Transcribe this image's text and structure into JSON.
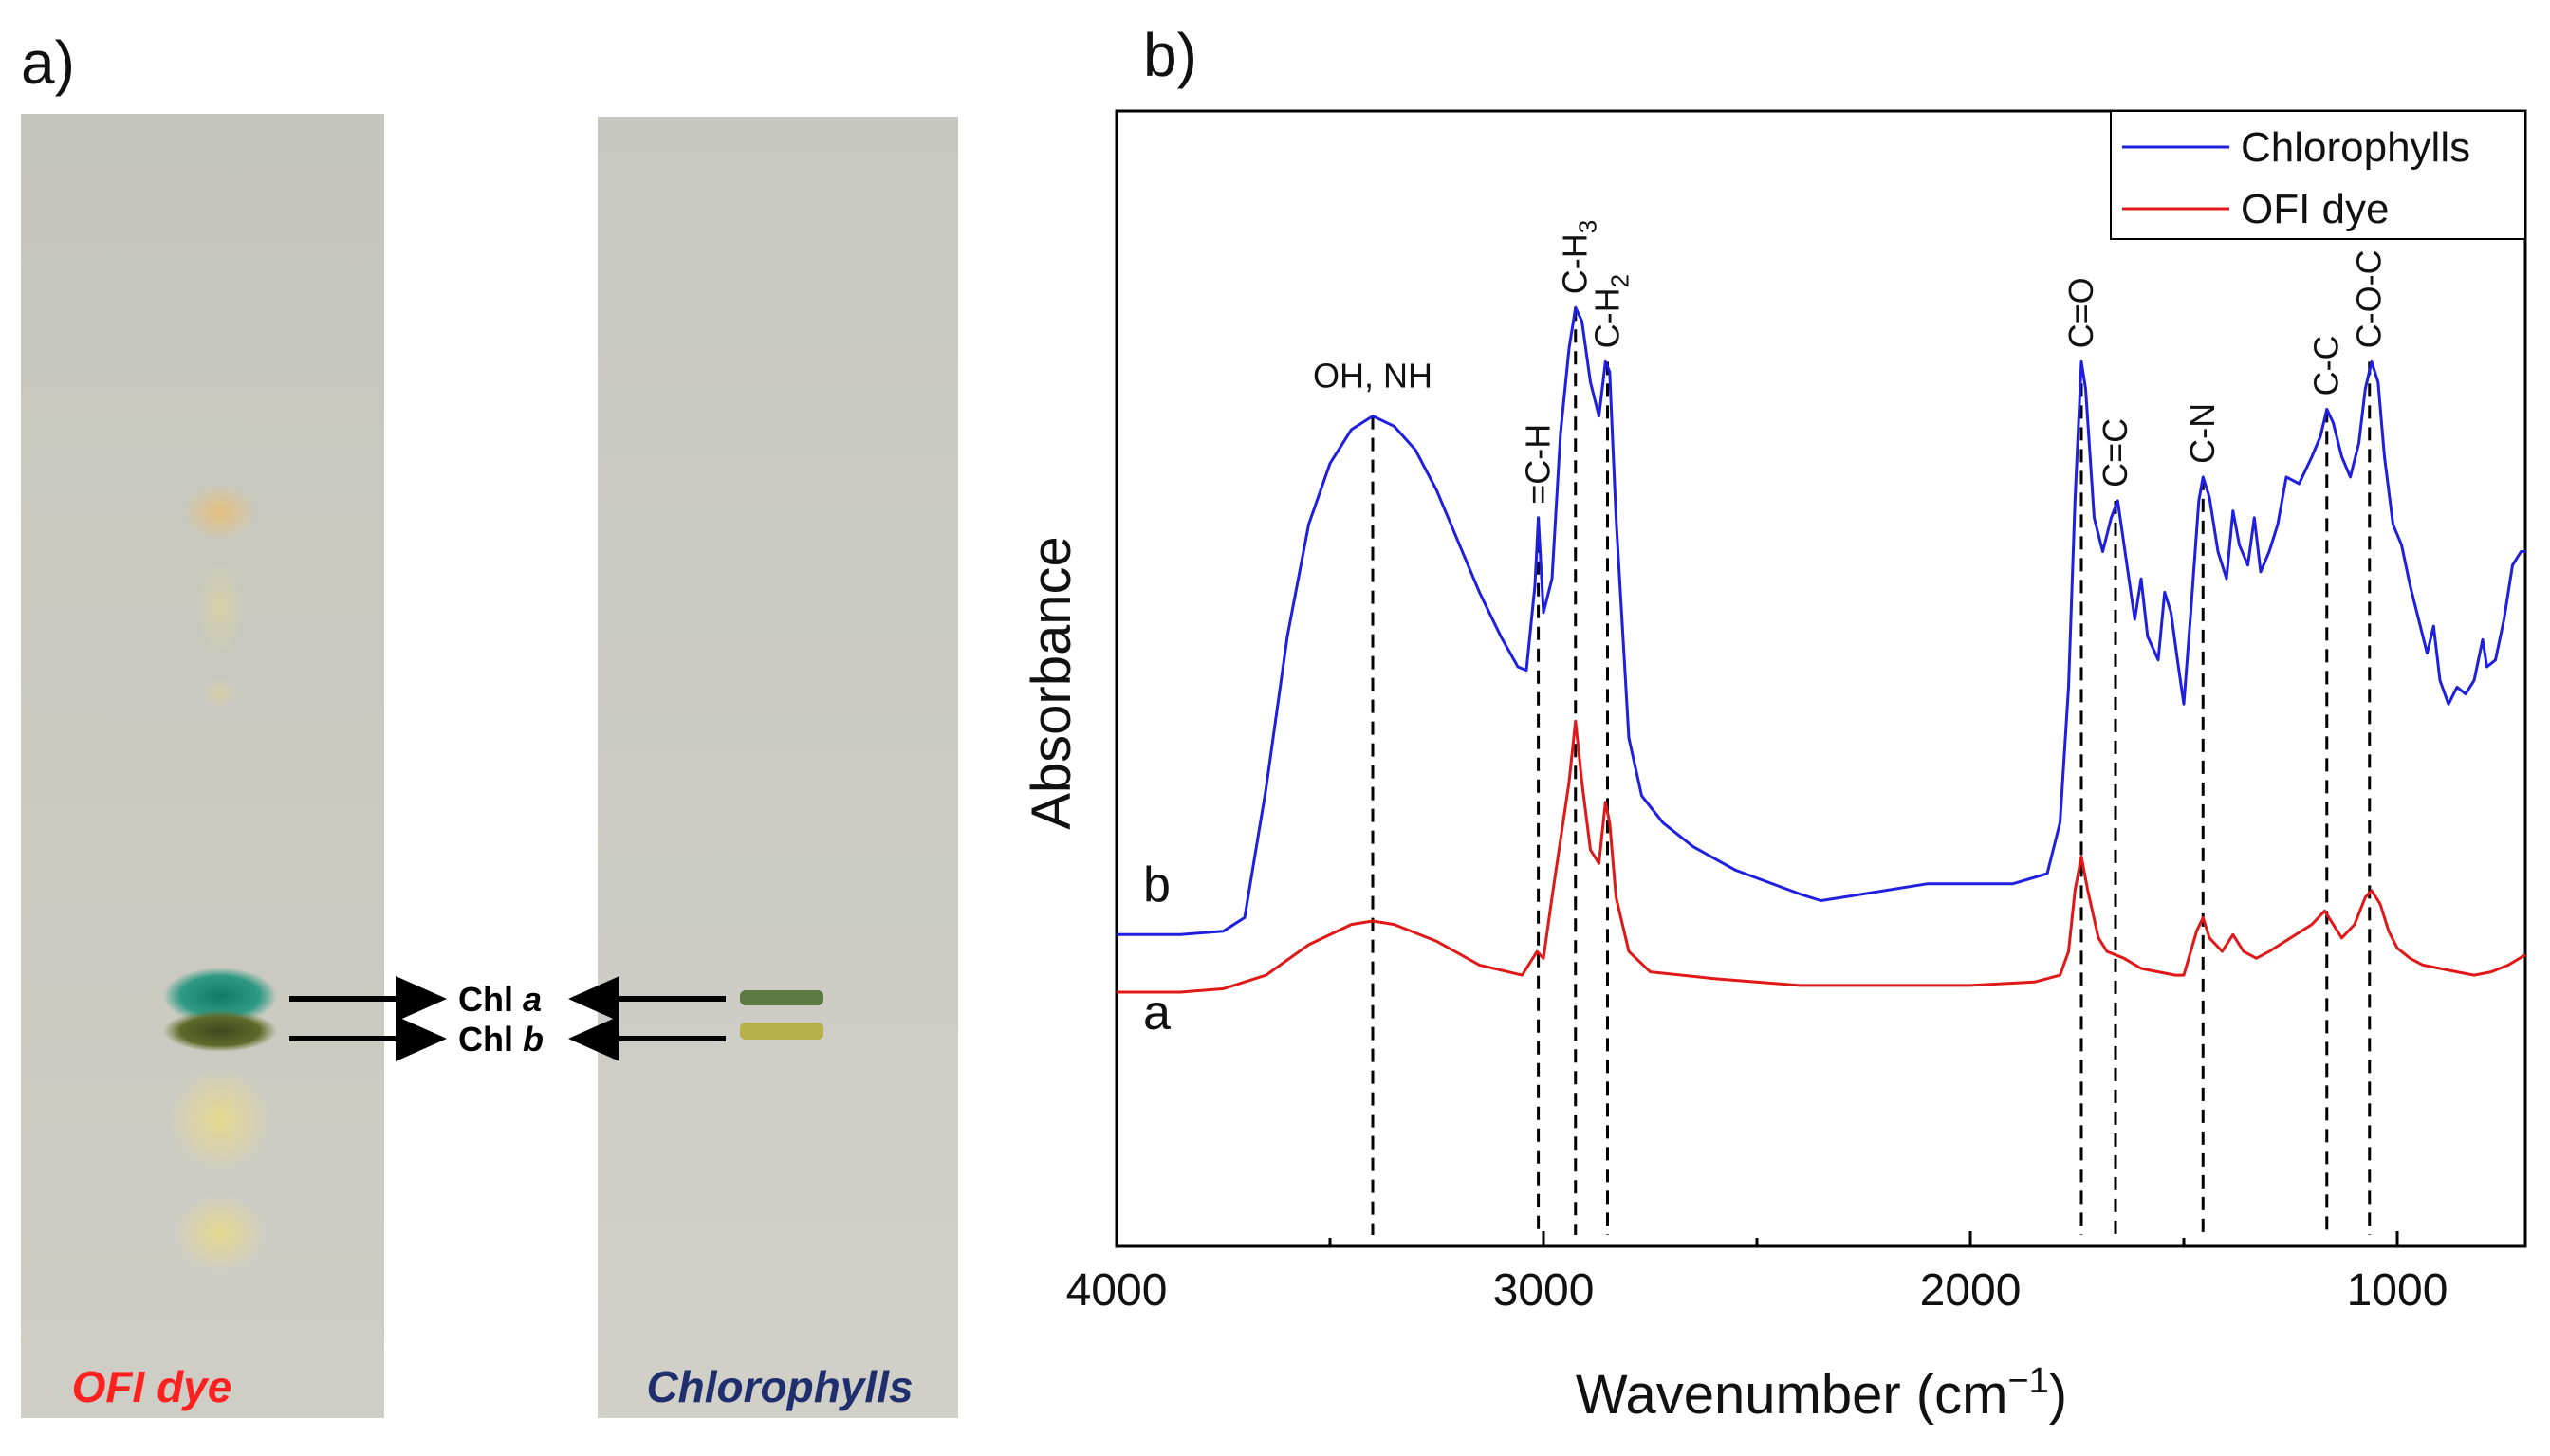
{
  "panel_a": {
    "label": "a)",
    "strips": [
      {
        "caption": "OFI dye",
        "caption_color": "#ff2020"
      },
      {
        "caption": "Chlorophylls",
        "caption_color": "#1f2f6e"
      }
    ],
    "band_labels": [
      {
        "name": "Chl",
        "letter": "a"
      },
      {
        "name": "Chl",
        "letter": "b"
      }
    ]
  },
  "panel_b": {
    "label": "b)"
  },
  "chart_data": {
    "type": "line",
    "xlabel_main": "Wavenumber (cm",
    "xlabel_sup": "−1",
    "xlabel_end": ")",
    "ylabel": "Absorbance",
    "xlim": [
      4000,
      700
    ],
    "x_reversed": true,
    "ylim": [
      -0.75,
      2.6
    ],
    "xticks": [
      4000,
      3000,
      2000,
      1000
    ],
    "minor_ticks": [
      3500,
      2500,
      1500
    ],
    "yticks_shown": false,
    "grid": false,
    "legend_position": "top-right",
    "series": [
      {
        "name": "Chlorophylls",
        "tag": "b",
        "color": "#1f1fe0",
        "points": [
          [
            4000,
            0.17
          ],
          [
            3850,
            0.17
          ],
          [
            3750,
            0.18
          ],
          [
            3700,
            0.22
          ],
          [
            3650,
            0.6
          ],
          [
            3600,
            1.05
          ],
          [
            3550,
            1.38
          ],
          [
            3500,
            1.56
          ],
          [
            3450,
            1.66
          ],
          [
            3400,
            1.7
          ],
          [
            3350,
            1.67
          ],
          [
            3300,
            1.6
          ],
          [
            3250,
            1.48
          ],
          [
            3200,
            1.33
          ],
          [
            3150,
            1.18
          ],
          [
            3100,
            1.05
          ],
          [
            3060,
            0.96
          ],
          [
            3040,
            0.95
          ],
          [
            3020,
            1.2
          ],
          [
            3012,
            1.4
          ],
          [
            3000,
            1.12
          ],
          [
            2980,
            1.22
          ],
          [
            2960,
            1.65
          ],
          [
            2940,
            1.9
          ],
          [
            2925,
            2.02
          ],
          [
            2910,
            1.98
          ],
          [
            2890,
            1.8
          ],
          [
            2870,
            1.7
          ],
          [
            2855,
            1.86
          ],
          [
            2845,
            1.83
          ],
          [
            2830,
            1.4
          ],
          [
            2800,
            0.75
          ],
          [
            2770,
            0.58
          ],
          [
            2720,
            0.5
          ],
          [
            2650,
            0.43
          ],
          [
            2550,
            0.36
          ],
          [
            2400,
            0.29
          ],
          [
            2350,
            0.27
          ],
          [
            2300,
            0.28
          ],
          [
            2100,
            0.32
          ],
          [
            1900,
            0.32
          ],
          [
            1820,
            0.35
          ],
          [
            1790,
            0.5
          ],
          [
            1770,
            0.9
          ],
          [
            1755,
            1.45
          ],
          [
            1740,
            1.86
          ],
          [
            1730,
            1.78
          ],
          [
            1710,
            1.4
          ],
          [
            1690,
            1.3
          ],
          [
            1670,
            1.4
          ],
          [
            1655,
            1.45
          ],
          [
            1640,
            1.32
          ],
          [
            1615,
            1.1
          ],
          [
            1600,
            1.22
          ],
          [
            1585,
            1.05
          ],
          [
            1560,
            0.98
          ],
          [
            1545,
            1.18
          ],
          [
            1530,
            1.12
          ],
          [
            1515,
            0.98
          ],
          [
            1500,
            0.85
          ],
          [
            1485,
            1.1
          ],
          [
            1465,
            1.45
          ],
          [
            1455,
            1.52
          ],
          [
            1440,
            1.46
          ],
          [
            1420,
            1.3
          ],
          [
            1400,
            1.22
          ],
          [
            1385,
            1.42
          ],
          [
            1370,
            1.32
          ],
          [
            1350,
            1.26
          ],
          [
            1335,
            1.4
          ],
          [
            1320,
            1.24
          ],
          [
            1300,
            1.3
          ],
          [
            1280,
            1.38
          ],
          [
            1260,
            1.52
          ],
          [
            1230,
            1.5
          ],
          [
            1200,
            1.58
          ],
          [
            1180,
            1.64
          ],
          [
            1165,
            1.72
          ],
          [
            1150,
            1.68
          ],
          [
            1130,
            1.58
          ],
          [
            1110,
            1.52
          ],
          [
            1090,
            1.62
          ],
          [
            1075,
            1.78
          ],
          [
            1060,
            1.86
          ],
          [
            1045,
            1.8
          ],
          [
            1030,
            1.58
          ],
          [
            1010,
            1.38
          ],
          [
            990,
            1.32
          ],
          [
            970,
            1.2
          ],
          [
            950,
            1.1
          ],
          [
            930,
            1.0
          ],
          [
            915,
            1.08
          ],
          [
            900,
            0.92
          ],
          [
            880,
            0.85
          ],
          [
            860,
            0.9
          ],
          [
            840,
            0.88
          ],
          [
            820,
            0.92
          ],
          [
            800,
            1.04
          ],
          [
            790,
            0.96
          ],
          [
            770,
            0.98
          ],
          [
            750,
            1.1
          ],
          [
            730,
            1.26
          ],
          [
            710,
            1.3
          ],
          [
            700,
            1.3
          ]
        ]
      },
      {
        "name": "OFI dye",
        "tag": "a",
        "color": "#e01818",
        "points": [
          [
            4000,
            0.0
          ],
          [
            3850,
            0.0
          ],
          [
            3750,
            0.01
          ],
          [
            3650,
            0.05
          ],
          [
            3550,
            0.14
          ],
          [
            3450,
            0.2
          ],
          [
            3400,
            0.21
          ],
          [
            3350,
            0.2
          ],
          [
            3250,
            0.15
          ],
          [
            3150,
            0.08
          ],
          [
            3050,
            0.05
          ],
          [
            3015,
            0.12
          ],
          [
            3000,
            0.1
          ],
          [
            2980,
            0.28
          ],
          [
            2960,
            0.45
          ],
          [
            2940,
            0.62
          ],
          [
            2925,
            0.8
          ],
          [
            2910,
            0.62
          ],
          [
            2890,
            0.42
          ],
          [
            2870,
            0.38
          ],
          [
            2855,
            0.56
          ],
          [
            2845,
            0.5
          ],
          [
            2830,
            0.28
          ],
          [
            2800,
            0.12
          ],
          [
            2750,
            0.06
          ],
          [
            2600,
            0.04
          ],
          [
            2400,
            0.02
          ],
          [
            2000,
            0.02
          ],
          [
            1850,
            0.03
          ],
          [
            1790,
            0.05
          ],
          [
            1770,
            0.12
          ],
          [
            1755,
            0.3
          ],
          [
            1740,
            0.4
          ],
          [
            1725,
            0.3
          ],
          [
            1700,
            0.16
          ],
          [
            1680,
            0.12
          ],
          [
            1660,
            0.11
          ],
          [
            1640,
            0.1
          ],
          [
            1600,
            0.07
          ],
          [
            1560,
            0.06
          ],
          [
            1520,
            0.05
          ],
          [
            1500,
            0.05
          ],
          [
            1470,
            0.18
          ],
          [
            1455,
            0.22
          ],
          [
            1440,
            0.16
          ],
          [
            1410,
            0.12
          ],
          [
            1385,
            0.17
          ],
          [
            1360,
            0.12
          ],
          [
            1330,
            0.1
          ],
          [
            1300,
            0.12
          ],
          [
            1250,
            0.16
          ],
          [
            1200,
            0.2
          ],
          [
            1170,
            0.24
          ],
          [
            1150,
            0.2
          ],
          [
            1130,
            0.16
          ],
          [
            1100,
            0.2
          ],
          [
            1075,
            0.28
          ],
          [
            1060,
            0.3
          ],
          [
            1040,
            0.26
          ],
          [
            1020,
            0.18
          ],
          [
            1000,
            0.13
          ],
          [
            970,
            0.1
          ],
          [
            940,
            0.08
          ],
          [
            900,
            0.07
          ],
          [
            860,
            0.06
          ],
          [
            820,
            0.05
          ],
          [
            780,
            0.06
          ],
          [
            740,
            0.08
          ],
          [
            700,
            0.11
          ]
        ]
      }
    ],
    "annotations": [
      {
        "text": "OH, NH",
        "x": 3400,
        "top": 1.7,
        "orientation": "horizontal"
      },
      {
        "text": "=C-H",
        "x": 3012,
        "top": 1.4,
        "orientation": "vertical"
      },
      {
        "text": "C-H",
        "sub": "3",
        "x": 2925,
        "top": 2.02,
        "orientation": "vertical"
      },
      {
        "text": "C-H",
        "sub": "2",
        "x": 2850,
        "top": 1.86,
        "orientation": "vertical"
      },
      {
        "text": "C=O",
        "x": 1740,
        "top": 1.86,
        "orientation": "vertical"
      },
      {
        "text": "C=C",
        "x": 1660,
        "top": 1.45,
        "orientation": "vertical"
      },
      {
        "text": "C-N",
        "x": 1455,
        "top": 1.52,
        "orientation": "vertical"
      },
      {
        "text": "C-C",
        "x": 1165,
        "top": 1.72,
        "orientation": "vertical"
      },
      {
        "text": "C-O-C",
        "x": 1065,
        "top": 1.86,
        "orientation": "vertical"
      }
    ]
  }
}
